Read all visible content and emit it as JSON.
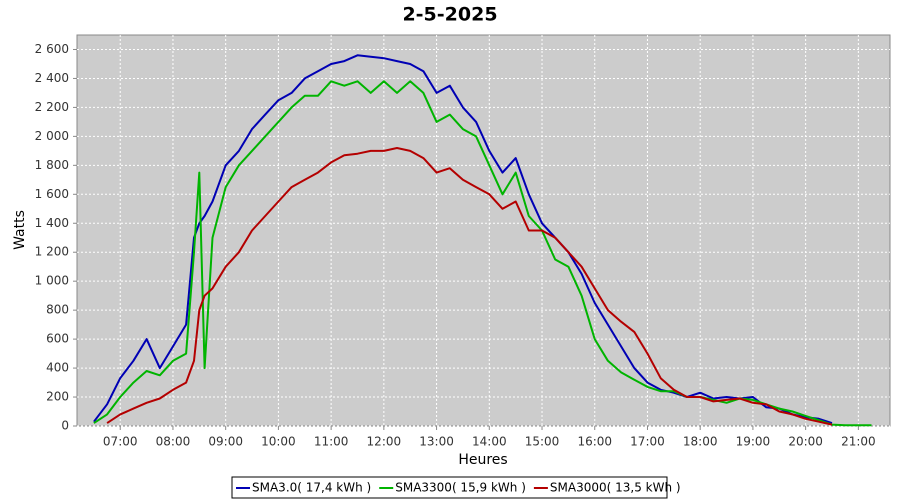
{
  "chart_data": {
    "type": "line",
    "title": "2-5-2025",
    "x_label": "Heures",
    "y_label": "Watts",
    "x": [
      6.25,
      6.5,
      6.75,
      7,
      7.25,
      7.5,
      7.75,
      8,
      8.25,
      8.4,
      8.5,
      8.6,
      8.75,
      9,
      9.25,
      9.5,
      9.75,
      10,
      10.25,
      10.5,
      10.75,
      11,
      11.25,
      11.5,
      11.75,
      12,
      12.25,
      12.5,
      12.75,
      13,
      13.25,
      13.5,
      13.75,
      14,
      14.25,
      14.5,
      14.75,
      15,
      15.25,
      15.5,
      15.75,
      16,
      16.25,
      16.5,
      16.75,
      17,
      17.25,
      17.5,
      17.75,
      18,
      18.25,
      18.5,
      18.75,
      19,
      19.25,
      19.5,
      19.75,
      20,
      20.25,
      20.5,
      20.75,
      21,
      21.25
    ],
    "series": [
      {
        "name": "SMA3.0( 17,4 kWh )",
        "color": "#0000b4",
        "values": [
          null,
          30,
          150,
          330,
          450,
          600,
          400,
          550,
          700,
          1300,
          1400,
          1450,
          1550,
          1800,
          1900,
          2050,
          2150,
          2250,
          2300,
          2400,
          2450,
          2500,
          2520,
          2560,
          2550,
          2540,
          2520,
          2500,
          2450,
          2300,
          2350,
          2200,
          2100,
          1900,
          1750,
          1850,
          1600,
          1400,
          1300,
          1200,
          1050,
          850,
          700,
          550,
          400,
          300,
          250,
          230,
          200,
          230,
          190,
          200,
          190,
          200,
          130,
          120,
          80,
          60,
          50,
          20,
          null,
          null,
          null
        ]
      },
      {
        "name": "SMA3300( 15,9 kWh )",
        "color": "#00b400",
        "values": [
          null,
          20,
          80,
          200,
          300,
          380,
          350,
          450,
          500,
          1200,
          1750,
          400,
          1300,
          1650,
          1800,
          1900,
          2000,
          2100,
          2200,
          2280,
          2280,
          2380,
          2350,
          2380,
          2300,
          2380,
          2300,
          2380,
          2300,
          2100,
          2150,
          2050,
          2000,
          1800,
          1600,
          1750,
          1450,
          1350,
          1150,
          1100,
          900,
          600,
          450,
          370,
          320,
          270,
          240,
          240,
          200,
          200,
          180,
          160,
          190,
          180,
          150,
          120,
          100,
          70,
          40,
          10,
          5,
          5,
          5
        ]
      },
      {
        "name": "SMA3000( 13,5 kWh )",
        "color": "#b40000",
        "values": [
          null,
          null,
          20,
          80,
          120,
          160,
          190,
          250,
          300,
          450,
          800,
          900,
          950,
          1100,
          1200,
          1350,
          1450,
          1550,
          1650,
          1700,
          1750,
          1820,
          1870,
          1880,
          1900,
          1900,
          1920,
          1900,
          1850,
          1750,
          1780,
          1700,
          1650,
          1600,
          1500,
          1550,
          1350,
          1350,
          1300,
          1200,
          1100,
          950,
          800,
          720,
          650,
          500,
          330,
          250,
          200,
          200,
          170,
          180,
          190,
          160,
          150,
          100,
          80,
          50,
          30,
          10,
          null,
          null,
          null
        ]
      }
    ],
    "xlim": [
      6.18,
      21.6
    ],
    "xticks": [
      {
        "value": 7,
        "label": "07:00"
      },
      {
        "value": 8,
        "label": "08:00"
      },
      {
        "value": 9,
        "label": "09:00"
      },
      {
        "value": 10,
        "label": "10:00"
      },
      {
        "value": 11,
        "label": "11:00"
      },
      {
        "value": 12,
        "label": "12:00"
      },
      {
        "value": 13,
        "label": "13:00"
      },
      {
        "value": 14,
        "label": "14:00"
      },
      {
        "value": 15,
        "label": "15:00"
      },
      {
        "value": 16,
        "label": "16:00"
      },
      {
        "value": 17,
        "label": "17:00"
      },
      {
        "value": 18,
        "label": "18:00"
      },
      {
        "value": 19,
        "label": "19:00"
      },
      {
        "value": 20,
        "label": "20:00"
      },
      {
        "value": 21,
        "label": "21:00"
      }
    ],
    "ylim": [
      0,
      2700
    ],
    "yticks": [
      0,
      200,
      400,
      600,
      800,
      {
        "value": 1000,
        "label": "1 000"
      },
      {
        "value": 1200,
        "label": "1 200"
      },
      {
        "value": 1400,
        "label": "1 400"
      },
      {
        "value": 1600,
        "label": "1 600"
      },
      {
        "value": 1800,
        "label": "1 800"
      },
      {
        "value": 2000,
        "label": "2 000"
      },
      {
        "value": 2200,
        "label": "2 200"
      },
      {
        "value": 2400,
        "label": "2 400"
      },
      {
        "value": 2600,
        "label": "2 600"
      }
    ],
    "grid": true
  }
}
